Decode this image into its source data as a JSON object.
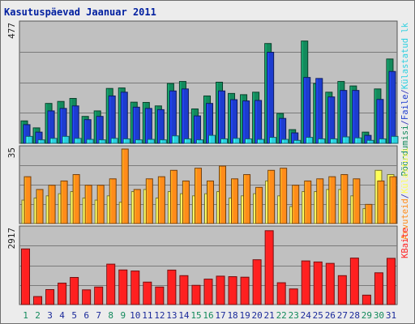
{
  "chart_data": {
    "type": "bar",
    "title": "Kasutuspäevad Jaanuar 2011",
    "categories": [
      "1",
      "2",
      "3",
      "4",
      "5",
      "6",
      "7",
      "8",
      "9",
      "10",
      "11",
      "12",
      "13",
      "14",
      "15",
      "16",
      "17",
      "18",
      "19",
      "20",
      "21",
      "22",
      "23",
      "24",
      "25",
      "26",
      "27",
      "28",
      "29",
      "30",
      "31"
    ],
    "weekend_days": [
      "1",
      "2",
      "8",
      "9",
      "15",
      "16",
      "22",
      "23",
      "29",
      "30"
    ],
    "panels": [
      {
        "id": "visits",
        "ymax_label": "477",
        "ymax": 477,
        "legend": [
          {
            "text": "Pöördumisi",
            "color": "#138a5c"
          },
          {
            "text": "/",
            "color": "#3c3cbc"
          },
          {
            "text": "Faile",
            "color": "#1d3ccf"
          },
          {
            "text": "/",
            "color": "#3c3cbc"
          },
          {
            "text": "Külastatud lk",
            "color": "#2cd0e0"
          }
        ],
        "series": [
          {
            "name": "Pöördumisi",
            "color": "#138a5c",
            "values": [
              90,
              62,
              160,
              168,
              180,
              108,
              130,
              220,
              222,
              165,
              164,
              150,
              240,
              248,
              138,
              190,
              245,
              200,
              195,
              205,
              400,
              120,
              55,
              410,
              240,
              205,
              248,
              230,
              45,
              218,
              338
            ]
          },
          {
            "name": "Faile",
            "color": "#1d3ccf",
            "values": [
              75,
              45,
              130,
              140,
              150,
              95,
              108,
              190,
              205,
              145,
              140,
              135,
              210,
              218,
              110,
              160,
              210,
              175,
              170,
              172,
              365,
              100,
              42,
              264,
              260,
              186,
              212,
              212,
              32,
              176,
              288
            ]
          },
          {
            "name": "Külastatud lk",
            "color": "#2cd0e0",
            "values": [
              28,
              14,
              20,
              28,
              20,
              16,
              14,
              20,
              18,
              14,
              16,
              14,
              30,
              18,
              14,
              32,
              18,
              20,
              18,
              16,
              24,
              16,
              12,
              24,
              18,
              18,
              26,
              22,
              12,
              18,
              28
            ]
          }
        ]
      },
      {
        "id": "sites",
        "ymax_label": "35",
        "ymax": 35,
        "legend": [
          {
            "text": "Arvuteid",
            "color": "#ff8c1a"
          },
          {
            "text": "/",
            "color": "#3c3cbc"
          },
          {
            "text": "Külastusi",
            "color": "#ffff55"
          }
        ],
        "series": [
          {
            "name": "Külastusi",
            "color": "#ffff55",
            "values": [
              11,
              12,
              13,
              14,
              15,
              12,
              11,
              13,
              10,
              15,
              16,
              12,
              15,
              14,
              13,
              14,
              15,
              12,
              13,
              14,
              20,
              13,
              8,
              15,
              15,
              16,
              16,
              13,
              7,
              25,
              23
            ]
          },
          {
            "name": "Arvuteid",
            "color": "#ff8c1a",
            "values": [
              22,
              16,
              18,
              20,
              23,
              18,
              18,
              21,
              35,
              16,
              21,
              22,
              25,
              20,
              26,
              20,
              27,
              21,
              23,
              17,
              25,
              26,
              18,
              20,
              21,
              22,
              23,
              21,
              9,
              20,
              22
            ]
          }
        ]
      },
      {
        "id": "kbytes",
        "ymax_label": "2917",
        "ymax": 2917,
        "legend": [
          {
            "text": "KBaite",
            "color": "#ff2020"
          }
        ],
        "series": [
          {
            "name": "KBaite",
            "color": "#ff2020",
            "values": [
              2155,
              310,
              580,
              830,
              1050,
              570,
              680,
              1565,
              1340,
              1300,
              870,
              680,
              1335,
              1120,
              745,
              985,
              1100,
              1080,
              1060,
              1735,
              2860,
              845,
              605,
              1690,
              1650,
              1595,
              1120,
              1800,
              365,
              1230,
              1790
            ]
          }
        ]
      }
    ]
  }
}
